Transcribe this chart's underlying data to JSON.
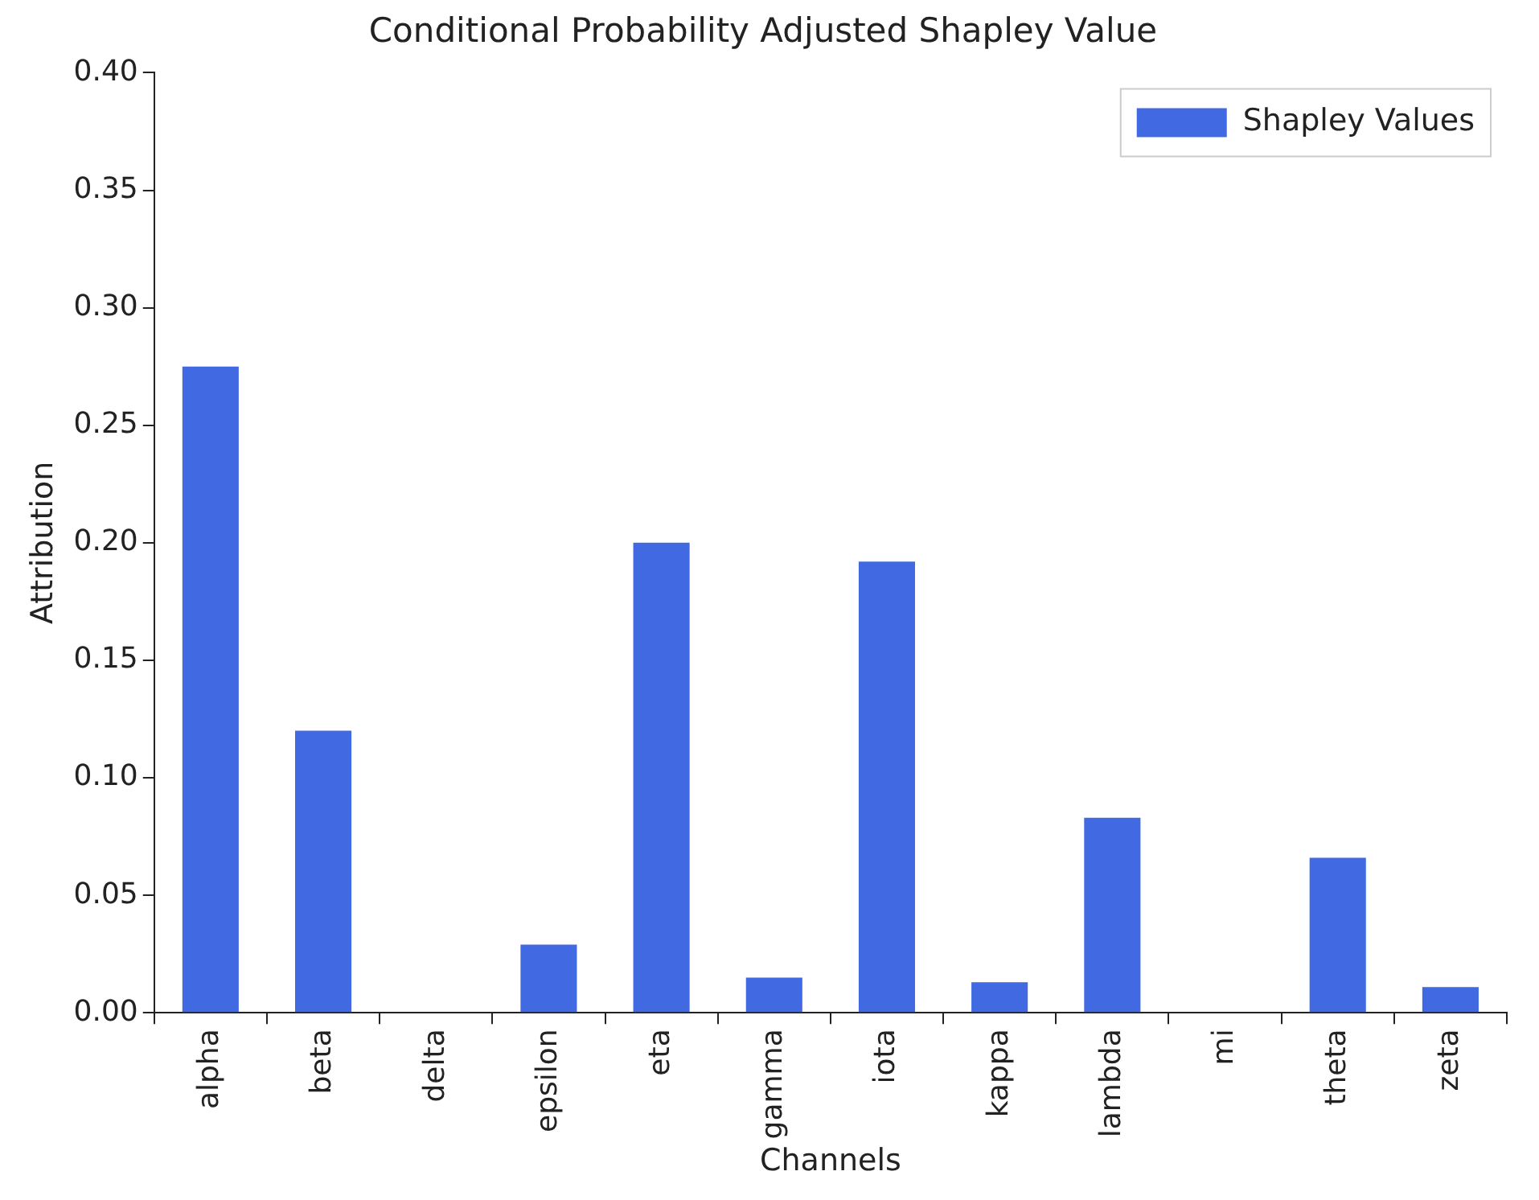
{
  "chart_data": {
    "type": "bar",
    "title": "Conditional Probability Adjusted Shapley Value",
    "xlabel": "Channels",
    "ylabel": "Attribution",
    "categories": [
      "alpha",
      "beta",
      "delta",
      "epsilon",
      "eta",
      "gamma",
      "iota",
      "kappa",
      "lambda",
      "mi",
      "theta",
      "zeta"
    ],
    "series": [
      {
        "name": "Shapley Values",
        "color": "#4169e1",
        "values": [
          0.275,
          0.12,
          0,
          0.029,
          0.2,
          0.015,
          0.192,
          0.013,
          0.083,
          0,
          0.066,
          0.011
        ]
      }
    ],
    "ylim": [
      0,
      0.4
    ],
    "yticks": [
      {
        "value": 0,
        "label": "0.00"
      },
      {
        "value": 0.05,
        "label": "0.05"
      },
      {
        "value": 0.1,
        "label": "0.10"
      },
      {
        "value": 0.15,
        "label": "0.15"
      },
      {
        "value": 0.2,
        "label": "0.20"
      },
      {
        "value": 0.25,
        "label": "0.25"
      },
      {
        "value": 0.3,
        "label": "0.30"
      },
      {
        "value": 0.35,
        "label": "0.35"
      },
      {
        "value": 0.4,
        "label": "0.40"
      }
    ],
    "grid": false,
    "legend": "top right"
  }
}
